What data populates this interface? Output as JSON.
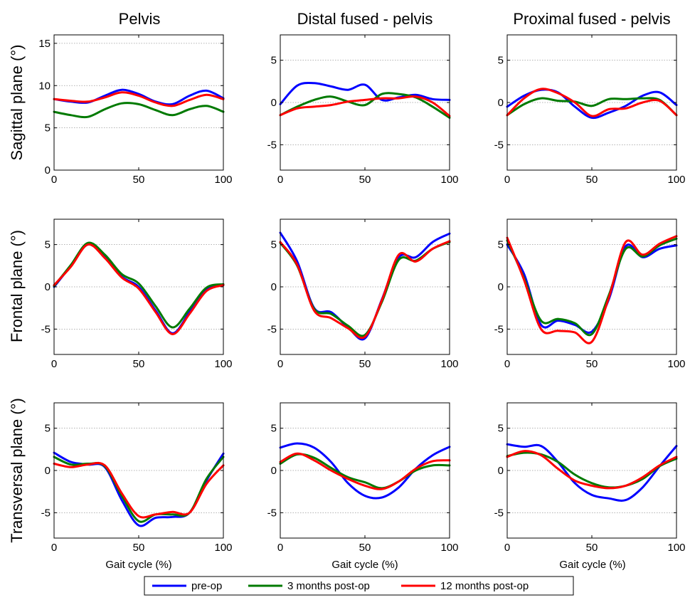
{
  "legend": {
    "placement": "bottom-center",
    "entries": [
      {
        "label": "pre-op",
        "color": "#0000ff"
      },
      {
        "label": "3 months post-op",
        "color": "#007a00"
      },
      {
        "label": "12 months post-op",
        "color": "#ff0000"
      }
    ]
  },
  "columns": [
    "Pelvis",
    "Distal fused - pelvis",
    "Proximal fused - pelvis"
  ],
  "rows": [
    "Sagittal plane (°)",
    "Frontal plane (°)",
    "Transversal plane (°)"
  ],
  "xlabel": "Gait cycle (%)",
  "chart_data": [
    {
      "type": "line",
      "title": "Pelvis",
      "ylabel": "Sagittal plane (°)",
      "xlabel": "",
      "xlim": [
        0,
        100
      ],
      "ylim": [
        0,
        16
      ],
      "yticks": [
        0,
        5,
        10,
        15
      ],
      "xticks": [
        0,
        50,
        100
      ],
      "grid": "horizontal dotted",
      "x": [
        0,
        10,
        20,
        30,
        40,
        50,
        60,
        70,
        80,
        90,
        100
      ],
      "series": [
        {
          "name": "pre-op",
          "values": [
            8.4,
            8.1,
            8.0,
            8.8,
            9.5,
            9.0,
            8.1,
            7.8,
            8.8,
            9.4,
            8.5
          ]
        },
        {
          "name": "3 months post-op",
          "values": [
            6.9,
            6.5,
            6.3,
            7.2,
            7.9,
            7.8,
            7.1,
            6.5,
            7.2,
            7.6,
            6.9
          ]
        },
        {
          "name": "12 months post-op",
          "values": [
            8.4,
            8.2,
            8.1,
            8.6,
            9.2,
            8.8,
            8.0,
            7.6,
            8.3,
            8.9,
            8.4
          ]
        }
      ]
    },
    {
      "type": "line",
      "title": "Distal fused - pelvis",
      "ylabel": "",
      "xlabel": "",
      "xlim": [
        0,
        100
      ],
      "ylim": [
        -8,
        8
      ],
      "yticks": [
        -5,
        0,
        5
      ],
      "xticks": [
        0,
        50,
        100
      ],
      "grid": "horizontal dotted",
      "x": [
        0,
        10,
        20,
        30,
        40,
        50,
        60,
        70,
        80,
        90,
        100
      ],
      "series": [
        {
          "name": "pre-op",
          "values": [
            -0.2,
            2.0,
            2.3,
            1.9,
            1.5,
            2.1,
            0.3,
            0.6,
            0.9,
            0.4,
            0.3
          ]
        },
        {
          "name": "3 months post-op",
          "values": [
            -1.5,
            -0.5,
            0.3,
            0.7,
            0.1,
            -0.3,
            1.0,
            1.0,
            0.6,
            -0.5,
            -1.8
          ]
        },
        {
          "name": "12 months post-op",
          "values": [
            -1.5,
            -0.7,
            -0.5,
            -0.3,
            0.1,
            0.3,
            0.5,
            0.5,
            0.7,
            0.0,
            -1.6
          ]
        }
      ]
    },
    {
      "type": "line",
      "title": "Proximal fused - pelvis",
      "ylabel": "",
      "xlabel": "",
      "xlim": [
        0,
        100
      ],
      "ylim": [
        -8,
        8
      ],
      "yticks": [
        -5,
        0,
        5
      ],
      "xticks": [
        0,
        50,
        100
      ],
      "grid": "horizontal dotted",
      "x": [
        0,
        10,
        20,
        30,
        40,
        50,
        60,
        70,
        80,
        90,
        100
      ],
      "series": [
        {
          "name": "pre-op",
          "values": [
            -0.5,
            0.8,
            1.5,
            1.2,
            -0.5,
            -1.8,
            -1.2,
            -0.4,
            0.8,
            1.2,
            -0.3
          ]
        },
        {
          "name": "3 months post-op",
          "values": [
            -1.5,
            -0.2,
            0.5,
            0.2,
            0.1,
            -0.4,
            0.4,
            0.4,
            0.5,
            0.3,
            -1.5
          ]
        },
        {
          "name": "12 months post-op",
          "values": [
            -1.5,
            0.5,
            1.6,
            1.1,
            0.0,
            -1.6,
            -0.8,
            -0.7,
            0.0,
            0.2,
            -1.5
          ]
        }
      ]
    },
    {
      "type": "line",
      "title": "",
      "ylabel": "Frontal plane (°)",
      "xlabel": "",
      "xlim": [
        0,
        100
      ],
      "ylim": [
        -8,
        8
      ],
      "yticks": [
        -5,
        0,
        5
      ],
      "xticks": [
        0,
        50,
        100
      ],
      "grid": "horizontal dotted",
      "x": [
        0,
        10,
        20,
        30,
        40,
        50,
        60,
        70,
        80,
        90,
        100
      ],
      "series": [
        {
          "name": "pre-op",
          "values": [
            0.0,
            2.5,
            5.0,
            3.5,
            1.2,
            0.0,
            -2.8,
            -5.5,
            -3.0,
            -0.3,
            0.2
          ]
        },
        {
          "name": "3 months post-op",
          "values": [
            0.1,
            2.6,
            5.2,
            3.8,
            1.5,
            0.4,
            -2.3,
            -4.8,
            -2.6,
            -0.1,
            0.3
          ]
        },
        {
          "name": "12 months post-op",
          "values": [
            0.2,
            2.4,
            5.0,
            3.4,
            1.1,
            -0.2,
            -3.0,
            -5.6,
            -3.2,
            -0.5,
            0.2
          ]
        }
      ]
    },
    {
      "type": "line",
      "title": "",
      "ylabel": "",
      "xlabel": "",
      "xlim": [
        0,
        100
      ],
      "ylim": [
        -8,
        8
      ],
      "yticks": [
        -5,
        0,
        5
      ],
      "xticks": [
        0,
        50,
        100
      ],
      "grid": "horizontal dotted",
      "x": [
        0,
        10,
        20,
        30,
        40,
        50,
        60,
        70,
        80,
        90,
        100
      ],
      "series": [
        {
          "name": "pre-op",
          "values": [
            6.4,
            3.0,
            -2.5,
            -3.0,
            -4.8,
            -6.1,
            -1.5,
            3.5,
            3.5,
            5.3,
            6.3
          ]
        },
        {
          "name": "3 months post-op",
          "values": [
            5.2,
            2.5,
            -2.6,
            -3.2,
            -4.6,
            -5.7,
            -1.8,
            3.2,
            3.1,
            4.5,
            5.3
          ]
        },
        {
          "name": "12 months post-op",
          "values": [
            5.3,
            2.6,
            -2.8,
            -3.7,
            -4.9,
            -5.9,
            -1.6,
            3.8,
            3.0,
            4.5,
            5.4
          ]
        }
      ]
    },
    {
      "type": "line",
      "title": "",
      "ylabel": "",
      "xlabel": "",
      "xlim": [
        0,
        100
      ],
      "ylim": [
        -8,
        8
      ],
      "yticks": [
        -5,
        0,
        5
      ],
      "xticks": [
        0,
        50,
        100
      ],
      "grid": "horizontal dotted",
      "x": [
        0,
        10,
        20,
        30,
        40,
        50,
        60,
        70,
        80,
        90,
        100
      ],
      "series": [
        {
          "name": "pre-op",
          "values": [
            5.0,
            1.5,
            -4.5,
            -4.0,
            -4.5,
            -5.3,
            -1.5,
            4.8,
            3.5,
            4.5,
            4.9
          ]
        },
        {
          "name": "3 months post-op",
          "values": [
            5.5,
            1.0,
            -4.0,
            -3.8,
            -4.3,
            -5.6,
            -1.0,
            4.5,
            3.6,
            4.9,
            5.7
          ]
        },
        {
          "name": "12 months post-op",
          "values": [
            5.8,
            0.8,
            -5.0,
            -5.2,
            -5.4,
            -6.5,
            -1.3,
            5.3,
            3.8,
            5.1,
            6.0
          ]
        }
      ]
    },
    {
      "type": "line",
      "title": "",
      "ylabel": "Transversal plane (°)",
      "xlabel": "Gait cycle (%)",
      "xlim": [
        0,
        100
      ],
      "ylim": [
        -8,
        8
      ],
      "yticks": [
        -5,
        0,
        5
      ],
      "xticks": [
        0,
        50,
        100
      ],
      "grid": "horizontal dotted",
      "x": [
        0,
        10,
        20,
        30,
        40,
        50,
        60,
        70,
        80,
        90,
        100
      ],
      "series": [
        {
          "name": "pre-op",
          "values": [
            2.1,
            1.0,
            0.7,
            0.4,
            -3.5,
            -6.5,
            -5.6,
            -5.5,
            -5.0,
            -1.2,
            2.0
          ]
        },
        {
          "name": "3 months post-op",
          "values": [
            1.6,
            0.7,
            0.8,
            0.5,
            -3.0,
            -6.0,
            -5.2,
            -5.2,
            -5.0,
            -1.0,
            1.6
          ]
        },
        {
          "name": "12 months post-op",
          "values": [
            0.8,
            0.4,
            0.7,
            0.6,
            -2.7,
            -5.4,
            -5.2,
            -4.9,
            -5.0,
            -1.6,
            0.6
          ]
        }
      ]
    },
    {
      "type": "line",
      "title": "",
      "ylabel": "",
      "xlabel": "Gait cycle (%)",
      "xlim": [
        0,
        100
      ],
      "ylim": [
        -8,
        8
      ],
      "yticks": [
        -5,
        0,
        5
      ],
      "xticks": [
        0,
        50,
        100
      ],
      "grid": "horizontal dotted",
      "x": [
        0,
        10,
        20,
        30,
        40,
        50,
        60,
        70,
        80,
        90,
        100
      ],
      "series": [
        {
          "name": "pre-op",
          "values": [
            2.7,
            3.2,
            2.7,
            1.0,
            -1.5,
            -3.0,
            -3.2,
            -2.0,
            0.2,
            1.8,
            2.8
          ]
        },
        {
          "name": "3 months post-op",
          "values": [
            0.8,
            1.9,
            1.5,
            0.3,
            -0.8,
            -1.4,
            -2.1,
            -1.3,
            0.0,
            0.6,
            0.6
          ]
        },
        {
          "name": "12 months post-op",
          "values": [
            1.0,
            2.0,
            1.2,
            0.0,
            -1.0,
            -1.8,
            -2.2,
            -1.3,
            0.2,
            1.1,
            1.2
          ]
        }
      ]
    },
    {
      "type": "line",
      "title": "",
      "ylabel": "",
      "xlabel": "Gait cycle (%)",
      "xlim": [
        0,
        100
      ],
      "ylim": [
        -8,
        8
      ],
      "yticks": [
        -5,
        0,
        5
      ],
      "xticks": [
        0,
        50,
        100
      ],
      "grid": "horizontal dotted",
      "x": [
        0,
        10,
        20,
        30,
        40,
        50,
        60,
        70,
        80,
        90,
        100
      ],
      "series": [
        {
          "name": "pre-op",
          "values": [
            3.1,
            2.8,
            2.9,
            1.0,
            -1.5,
            -2.9,
            -3.3,
            -3.5,
            -2.0,
            0.5,
            2.9
          ]
        },
        {
          "name": "3 months post-op",
          "values": [
            1.7,
            2.1,
            1.9,
            1.0,
            -0.5,
            -1.5,
            -2.0,
            -1.8,
            -1.0,
            0.5,
            1.4
          ]
        },
        {
          "name": "12 months post-op",
          "values": [
            1.6,
            2.3,
            1.8,
            0.2,
            -1.2,
            -1.8,
            -2.1,
            -1.8,
            -0.8,
            0.6,
            1.6
          ]
        }
      ]
    }
  ]
}
